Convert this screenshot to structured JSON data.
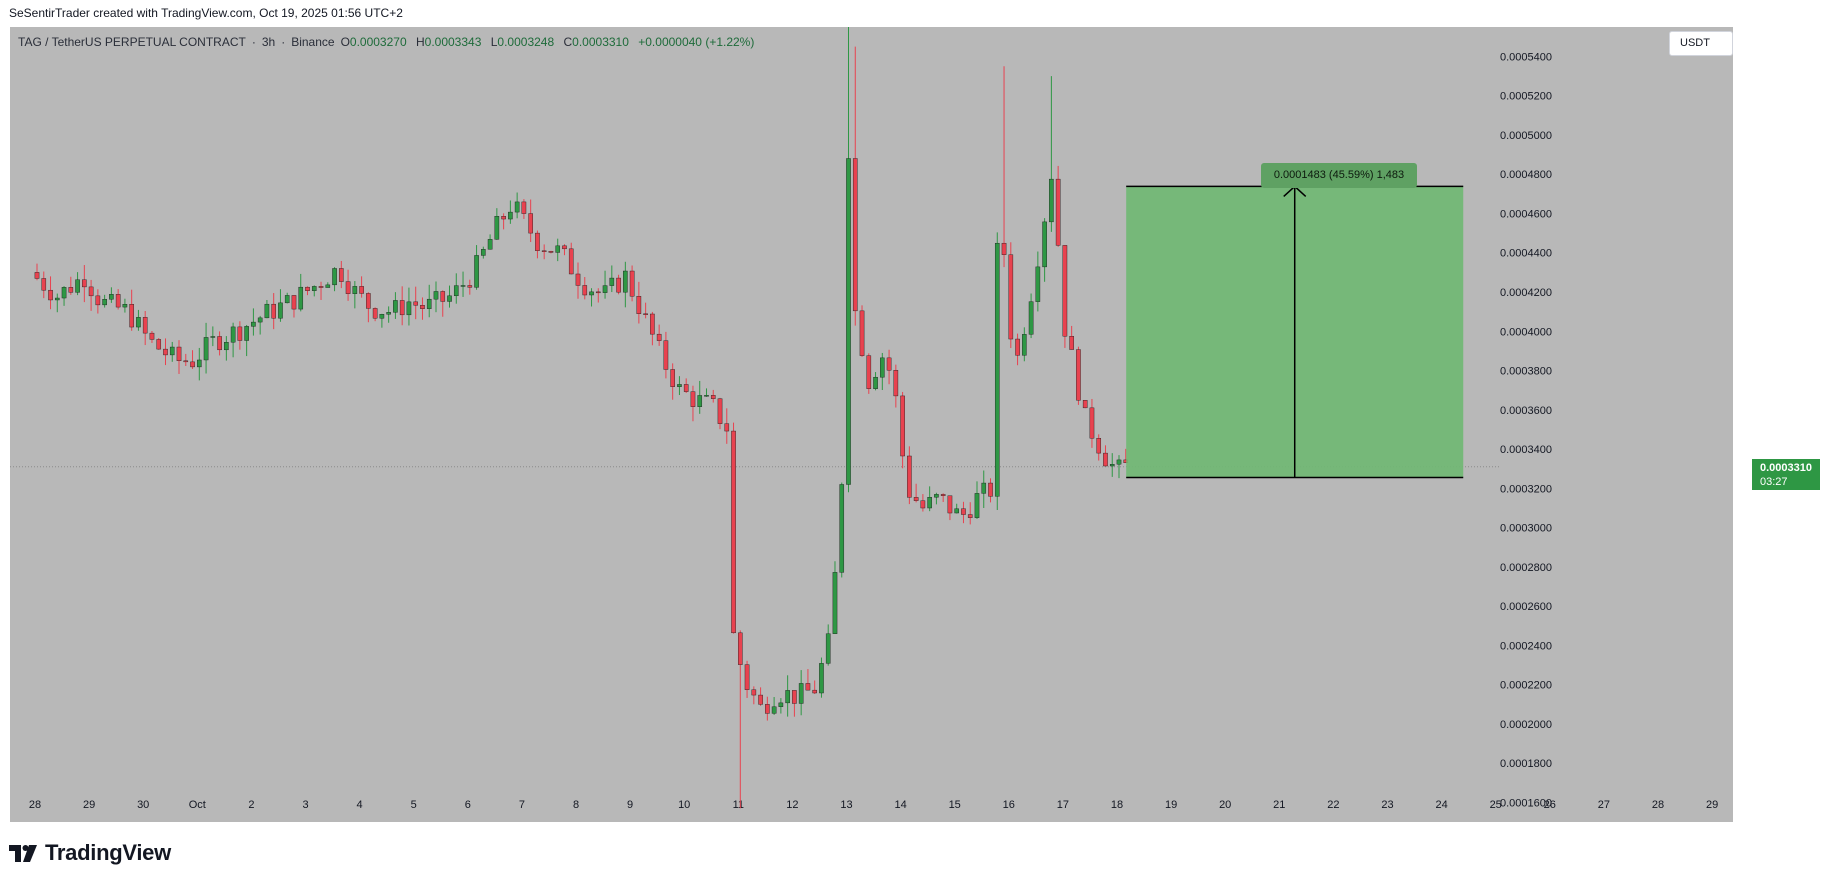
{
  "top_caption": "SeSentirTrader created with TradingView.com, Oct 19, 2025 01:56 UTC+2",
  "header": {
    "symbol": "TAG / TetherUS PERPETUAL CONTRACT",
    "interval": "3h",
    "exchange": "Binance",
    "open_label": "O",
    "open": "0.0003270",
    "high_label": "H",
    "high": "0.0003343",
    "low_label": "L",
    "low": "0.0003248",
    "close_label": "C",
    "close": "0.0003310",
    "change": "+0.0000040 (+1.22%)"
  },
  "currency_button": "USDT",
  "last_price": {
    "value": "0.0003310",
    "countdown": "03:27"
  },
  "measure": {
    "label": "0.0001483 (45.59%) 1,483",
    "from": 0.0003255,
    "to": 0.0004738,
    "x_start": 20.17,
    "x_end": 26.4
  },
  "brand": "TradingView",
  "colors": {
    "up": "#2e9744",
    "down": "#e8424f",
    "measure_fill": "#6fb872",
    "measure_label_bg": "#5fa163",
    "background": "#b8b8b8"
  },
  "chart_data": {
    "type": "candlestick",
    "title": "",
    "xlabel": "",
    "ylabel": "",
    "ylim": [
      0.00015,
      0.000555
    ],
    "xlim": [
      27.5,
      30.5
    ],
    "y_axis_position": "right",
    "grid": false,
    "x_tick_labels": [
      "28",
      "29",
      "30",
      "Oct",
      "2",
      "3",
      "4",
      "5",
      "6",
      "7",
      "8",
      "9",
      "10",
      "11",
      "12",
      "13",
      "14",
      "15",
      "16",
      "17",
      "18",
      "19",
      "20",
      "21",
      "22",
      "23",
      "24",
      "25",
      "26",
      "27",
      "28",
      "29"
    ],
    "y_ticks": [
      "0.0001600",
      "0.0001800",
      "0.0002000",
      "0.0002200",
      "0.0002400",
      "0.0002600",
      "0.0002800",
      "0.0003000",
      "0.0003200",
      "0.0003400",
      "0.0003600",
      "0.0003800",
      "0.0004000",
      "0.0004200",
      "0.0004400",
      "0.0004600",
      "0.0004800",
      "0.0005000",
      "0.0005200",
      "0.0005400"
    ],
    "candles_note": "approximate 3h OHLC read from chart; t in days from Sep 28 (Oct 1 = 3)",
    "anchors": [
      [
        0.0,
        0.00043
      ],
      [
        0.5,
        0.000418
      ],
      [
        1.0,
        0.000428
      ],
      [
        1.3,
        0.000415
      ],
      [
        1.8,
        0.00041
      ],
      [
        2.2,
        0.000395
      ],
      [
        2.7,
        0.000385
      ],
      [
        3.0,
        0.000385
      ],
      [
        3.4,
        0.000395
      ],
      [
        3.8,
        0.0004
      ],
      [
        4.3,
        0.000408
      ],
      [
        4.8,
        0.000415
      ],
      [
        5.2,
        0.000422
      ],
      [
        5.7,
        0.000432
      ],
      [
        6.0,
        0.00042
      ],
      [
        6.3,
        0.000412
      ],
      [
        6.7,
        0.00041
      ],
      [
        7.0,
        0.000415
      ],
      [
        7.3,
        0.000412
      ],
      [
        7.8,
        0.000418
      ],
      [
        8.2,
        0.00043
      ],
      [
        8.6,
        0.000452
      ],
      [
        8.9,
        0.000465
      ],
      [
        9.4,
        0.000445
      ],
      [
        9.8,
        0.00044
      ],
      [
        10.2,
        0.000425
      ],
      [
        10.6,
        0.000418
      ],
      [
        11.0,
        0.000428
      ],
      [
        11.3,
        0.00041
      ],
      [
        11.7,
        0.000385
      ],
      [
        12.0,
        0.00037
      ],
      [
        12.3,
        0.000365
      ],
      [
        12.6,
        0.000362
      ],
      [
        12.9,
        0.00035
      ],
      [
        13.0,
        0.000245
      ],
      [
        13.2,
        0.000222
      ],
      [
        13.5,
        0.000208
      ],
      [
        13.8,
        0.000216
      ],
      [
        14.2,
        0.000214
      ],
      [
        14.5,
        0.000218
      ],
      [
        14.8,
        0.000245
      ],
      [
        15.0,
        0.000325
      ],
      [
        15.1,
        0.00051
      ],
      [
        15.25,
        0.00041
      ],
      [
        15.5,
        0.000375
      ],
      [
        15.8,
        0.00039
      ],
      [
        16.0,
        0.000365
      ],
      [
        16.2,
        0.00032
      ],
      [
        16.5,
        0.00031
      ],
      [
        16.8,
        0.000315
      ],
      [
        17.2,
        0.000305
      ],
      [
        17.5,
        0.000315
      ],
      [
        17.8,
        0.00032
      ],
      [
        17.9,
        0.00048
      ],
      [
        18.05,
        0.00042
      ],
      [
        18.2,
        0.00038
      ],
      [
        18.5,
        0.00042
      ],
      [
        18.7,
        0.00045
      ],
      [
        18.9,
        0.000485
      ],
      [
        19.1,
        0.000405
      ],
      [
        19.3,
        0.00038
      ],
      [
        19.5,
        0.000355
      ],
      [
        19.7,
        0.000345
      ],
      [
        19.9,
        0.000335
      ],
      [
        20.1,
        0.000328
      ],
      [
        20.17,
        0.000331
      ]
    ]
  }
}
